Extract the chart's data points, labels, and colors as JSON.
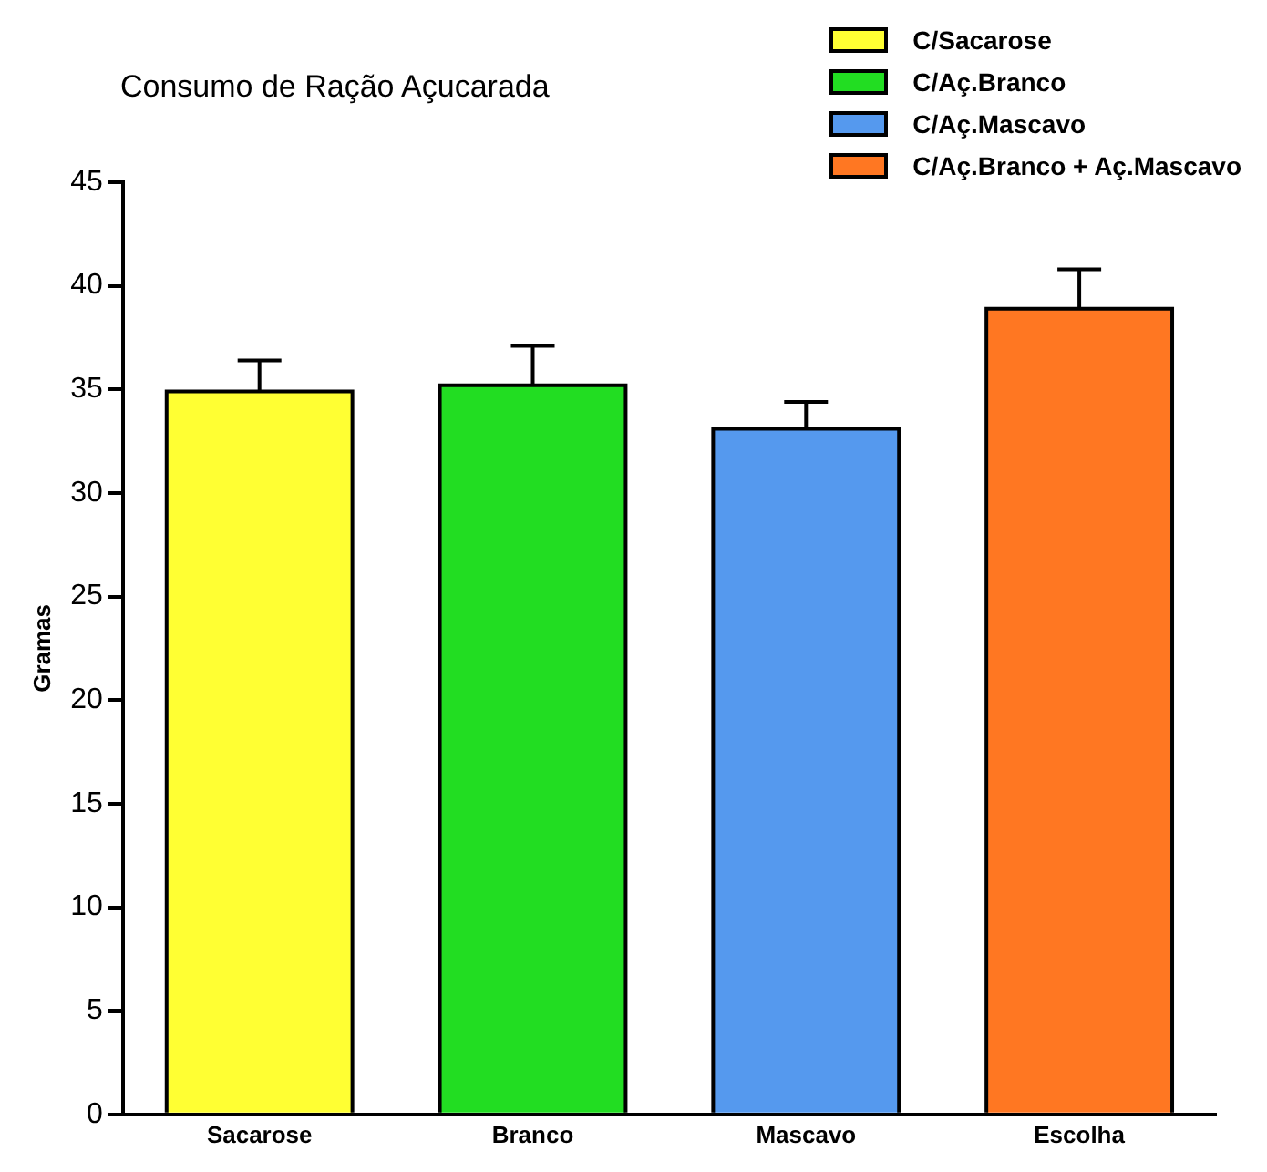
{
  "chart_data": {
    "type": "bar",
    "title": "Consumo de Ração Açucarada",
    "ylabel": "Gramas",
    "categories": [
      "Sacarose",
      "Branco",
      "Mascavo",
      "Escolha"
    ],
    "series": [
      {
        "name": "C/Sacarose",
        "color": "#ffff33",
        "values": [
          34.9,
          null,
          null,
          null
        ],
        "errors": [
          [
            34.9,
            36.4
          ],
          null,
          null,
          null
        ]
      },
      {
        "name": "C/Aç.Branco",
        "color": "#22dd22",
        "values": [
          null,
          35.2,
          null,
          null
        ],
        "errors": [
          null,
          [
            35.2,
            37.1
          ],
          null,
          null
        ]
      },
      {
        "name": "C/Aç.Mascavo",
        "color": "#5599ee",
        "values": [
          null,
          null,
          33.1,
          null
        ],
        "errors": [
          null,
          null,
          [
            33.1,
            34.4
          ],
          null
        ]
      },
      {
        "name": "C/Aç.Branco + Aç.Mascavo",
        "color": "#ff7722",
        "values": [
          null,
          null,
          null,
          38.9
        ],
        "errors": [
          null,
          null,
          null,
          [
            38.9,
            40.8
          ]
        ]
      }
    ],
    "ylim": [
      0,
      45
    ],
    "yticks": [
      0,
      5,
      10,
      15,
      20,
      25,
      30,
      35,
      40,
      45
    ],
    "grid": false,
    "legend": "top right"
  }
}
